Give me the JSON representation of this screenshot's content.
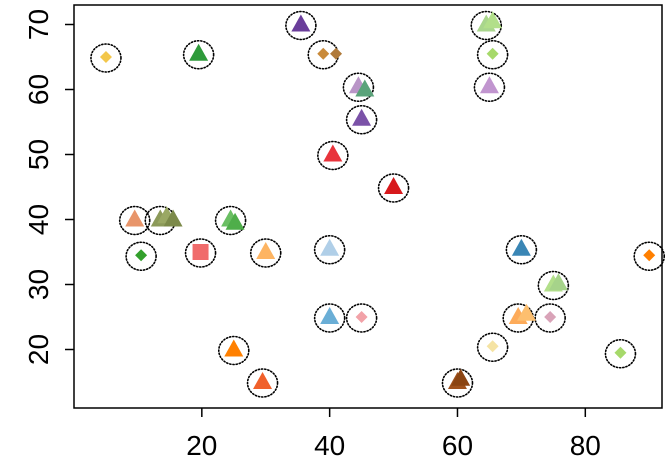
{
  "chart_data": {
    "type": "scatter",
    "title": "",
    "xlabel": "",
    "ylabel": "",
    "xlim": [
      0,
      92
    ],
    "ylim": [
      11,
      73
    ],
    "x_ticks": [
      20,
      40,
      60,
      80
    ],
    "y_ticks": [
      20,
      30,
      40,
      50,
      60,
      70
    ],
    "x_tick_labels": [
      "20",
      "40",
      "60",
      "80"
    ],
    "y_tick_labels": [
      "20",
      "30",
      "40",
      "50",
      "60",
      "70"
    ],
    "grid": false,
    "points": [
      {
        "x": 5,
        "y": 65,
        "shape": "diamond",
        "color": "#f3c74b",
        "circled": true
      },
      {
        "x": 19.5,
        "y": 65.5,
        "shape": "triangle",
        "color": "#2e9a3a",
        "circled": true
      },
      {
        "x": 35.5,
        "y": 70,
        "shape": "triangle",
        "color": "#6a3d9a",
        "circled": true
      },
      {
        "x": 39,
        "y": 65.5,
        "shape": "diamond",
        "color": "#c98a3a",
        "circled": true
      },
      {
        "x": 41,
        "y": 65.5,
        "shape": "diamond",
        "color": "#b07a3a",
        "circled": false
      },
      {
        "x": 44.5,
        "y": 60.5,
        "shape": "triangle",
        "color": "#b995c7",
        "circled": true
      },
      {
        "x": 45.5,
        "y": 60,
        "shape": "triangle",
        "color": "#5aa37a",
        "circled": false
      },
      {
        "x": 45,
        "y": 55.5,
        "shape": "triangle",
        "color": "#7b52a8",
        "circled": true
      },
      {
        "x": 40.5,
        "y": 50,
        "shape": "triangle",
        "color": "#e8333b",
        "circled": true
      },
      {
        "x": 50,
        "y": 45,
        "shape": "triangle",
        "color": "#d7191c",
        "circled": true
      },
      {
        "x": 64.5,
        "y": 70,
        "shape": "triangle",
        "color": "#a9d68c",
        "circled": true
      },
      {
        "x": 65.5,
        "y": 70.5,
        "shape": "triangle",
        "color": "#b2df8a",
        "circled": false
      },
      {
        "x": 65.5,
        "y": 65.5,
        "shape": "diamond",
        "color": "#a6d96a",
        "circled": true
      },
      {
        "x": 65,
        "y": 60.5,
        "shape": "triangle",
        "color": "#c195cf",
        "circled": true
      },
      {
        "x": 9.5,
        "y": 40,
        "shape": "triangle",
        "color": "#e8956a",
        "circled": true
      },
      {
        "x": 13.5,
        "y": 40,
        "shape": "triangle",
        "color": "#8c9a5a",
        "circled": true
      },
      {
        "x": 14.5,
        "y": 40.5,
        "shape": "triangle",
        "color": "#9aa864",
        "circled": false
      },
      {
        "x": 15.5,
        "y": 40,
        "shape": "triangle",
        "color": "#7c8a4a",
        "circled": false
      },
      {
        "x": 24.5,
        "y": 40,
        "shape": "triangle",
        "color": "#6abf63",
        "circled": true
      },
      {
        "x": 25.2,
        "y": 39.5,
        "shape": "triangle",
        "color": "#4fae4a",
        "circled": false
      },
      {
        "x": 10.5,
        "y": 34.5,
        "shape": "diamond",
        "color": "#33a02c",
        "circled": true
      },
      {
        "x": 19.8,
        "y": 35,
        "shape": "square",
        "color": "#f06b6b",
        "circled": true
      },
      {
        "x": 30,
        "y": 35,
        "shape": "triangle",
        "color": "#fdb462",
        "circled": true
      },
      {
        "x": 40,
        "y": 35.5,
        "shape": "triangle",
        "color": "#b0cfe8",
        "circled": true
      },
      {
        "x": 70,
        "y": 35.5,
        "shape": "triangle",
        "color": "#3a86b5",
        "circled": true
      },
      {
        "x": 90,
        "y": 34.5,
        "shape": "diamond",
        "color": "#ff7f00",
        "circled": true
      },
      {
        "x": 75,
        "y": 30,
        "shape": "triangle",
        "color": "#b2df8a",
        "circled": true
      },
      {
        "x": 75.8,
        "y": 30.2,
        "shape": "triangle",
        "color": "#a6d38a",
        "circled": false
      },
      {
        "x": 40,
        "y": 25,
        "shape": "triangle",
        "color": "#6aaed6",
        "circled": true
      },
      {
        "x": 45,
        "y": 25,
        "shape": "diamond",
        "color": "#f2a2a8",
        "circled": true
      },
      {
        "x": 69.5,
        "y": 25,
        "shape": "triangle",
        "color": "#fdab5a",
        "circled": true
      },
      {
        "x": 70.8,
        "y": 25.5,
        "shape": "triangle",
        "color": "#fdbf6f",
        "circled": false
      },
      {
        "x": 74.5,
        "y": 25,
        "shape": "diamond",
        "color": "#d9a3b8",
        "circled": true
      },
      {
        "x": 65.5,
        "y": 20.5,
        "shape": "diamond",
        "color": "#f5e3a3",
        "circled": true
      },
      {
        "x": 85.5,
        "y": 19.5,
        "shape": "diamond",
        "color": "#a6d96a",
        "circled": true
      },
      {
        "x": 25,
        "y": 20,
        "shape": "triangle",
        "color": "#ff8000",
        "circled": true
      },
      {
        "x": 29.5,
        "y": 15,
        "shape": "triangle",
        "color": "#f0602b",
        "circled": true
      },
      {
        "x": 60,
        "y": 15,
        "shape": "triangle",
        "color": "#a0521d",
        "circled": true
      },
      {
        "x": 60.5,
        "y": 15.5,
        "shape": "triangle",
        "color": "#8b4513",
        "circled": false
      }
    ]
  }
}
